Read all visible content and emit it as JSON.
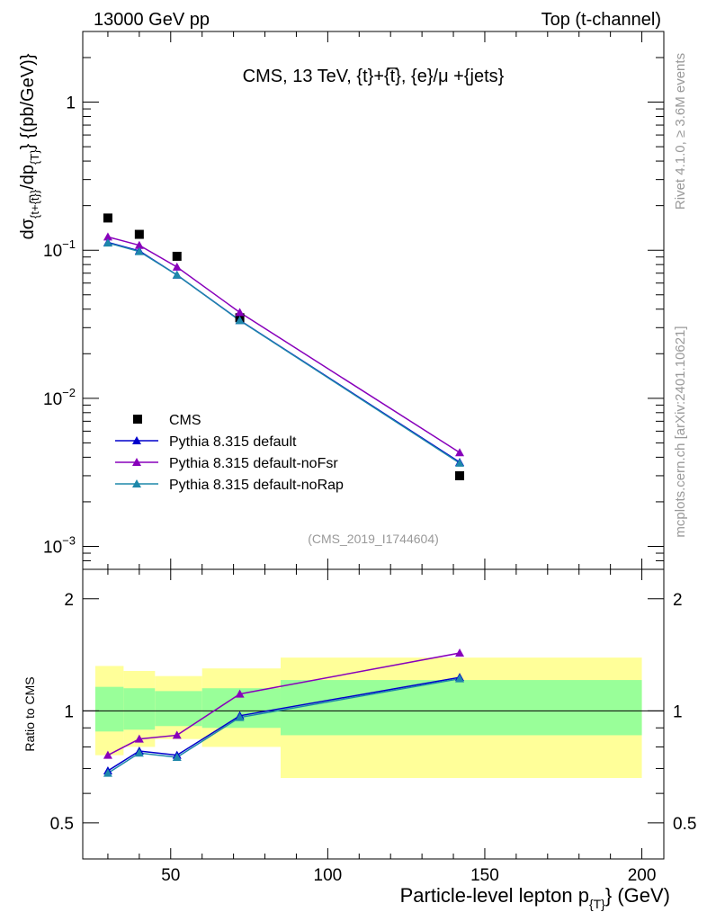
{
  "header": {
    "left": "13000 GeV pp",
    "right": "Top (t-channel)"
  },
  "side": {
    "rivet": "Rivet 4.1.0, ≥ 3.6M events",
    "mcplots": "mcplots.cern.ch [arXiv:2401.10621]"
  },
  "chart_data": {
    "type": "line",
    "title": "CMS, 13 TeV, {t}+{t̅}, {e}/μ +{jets}",
    "analysis_tag": "(CMS_2019_I1744604)",
    "xlabel": "Particle-level lepton p_{T} (GeV)",
    "xlabel_main": "Particle-level lepton p",
    "xlabel_sub": "{T}",
    "xlabel_unit": "} (GeV)",
    "ylabel": "dσ_{t+t̅}/dp_{T} {(pb/GeV)}",
    "ylabel_parts": {
      "pre": "dσ",
      "sub": "{t+{t̅}}",
      "mid": "/dp",
      "sub2": "{T}",
      "post": "}  {(pb/GeV)}"
    },
    "ratio_ylabel": "Ratio to CMS",
    "xlim": [
      22,
      207
    ],
    "ylim": [
      0.0007,
      3.0
    ],
    "ratio_ylim": [
      0.4,
      2.4
    ],
    "x_ticks": [
      50,
      100,
      150,
      200
    ],
    "x_tick_labels": [
      "50",
      "100",
      "150",
      "200"
    ],
    "y_ticks": [
      {
        "value": 1,
        "base": "1",
        "exp": ""
      },
      {
        "value": 0.1,
        "base": "10",
        "exp": "−1"
      },
      {
        "value": 0.01,
        "base": "10",
        "exp": "−2"
      },
      {
        "value": 0.001,
        "base": "10",
        "exp": "−3"
      }
    ],
    "ratio_ticks": [
      {
        "value": 0.5,
        "label": "0.5"
      },
      {
        "value": 1,
        "label": "1"
      },
      {
        "value": 2,
        "label": "2"
      }
    ],
    "bins": [
      {
        "lo": 26,
        "hi": 35,
        "center": 30,
        "cms": 0.165
      },
      {
        "lo": 35,
        "hi": 45,
        "center": 40,
        "cms": 0.128
      },
      {
        "lo": 45,
        "hi": 60,
        "center": 52,
        "cms": 0.091
      },
      {
        "lo": 60,
        "hi": 85,
        "center": 72,
        "cms": 0.035
      },
      {
        "lo": 85,
        "hi": 200,
        "center": 142,
        "cms": 0.003
      }
    ],
    "uncertainty_bands": {
      "inner": [
        [
          0.88,
          1.16
        ],
        [
          0.89,
          1.15
        ],
        [
          0.91,
          1.13
        ],
        [
          0.9,
          1.15
        ],
        [
          0.86,
          1.21
        ]
      ],
      "outer": [
        [
          0.76,
          1.32
        ],
        [
          0.8,
          1.28
        ],
        [
          0.84,
          1.24
        ],
        [
          0.8,
          1.3
        ],
        [
          0.66,
          1.39
        ]
      ]
    },
    "series": [
      {
        "name": "CMS",
        "color": "#000000",
        "marker": "square",
        "x": [
          30,
          40,
          52,
          72,
          142
        ],
        "values": [
          0.165,
          0.128,
          0.091,
          0.035,
          0.003
        ]
      },
      {
        "name": "Pythia 8.315 default",
        "color": "#0000cc",
        "marker": "triangle",
        "x": [
          30,
          40,
          52,
          72,
          142
        ],
        "values": [
          0.113,
          0.099,
          0.068,
          0.0336,
          0.0037
        ],
        "ratio": [
          0.69,
          0.78,
          0.76,
          0.97,
          1.23
        ]
      },
      {
        "name": "Pythia 8.315 default-noFsr",
        "color": "#8800bb",
        "marker": "triangle",
        "x": [
          30,
          40,
          52,
          72,
          142
        ],
        "values": [
          0.123,
          0.108,
          0.077,
          0.038,
          0.0043
        ],
        "ratio": [
          0.76,
          0.84,
          0.86,
          1.11,
          1.43
        ]
      },
      {
        "name": "Pythia 8.315 default-noRap",
        "color": "#1e88aa",
        "marker": "triangle",
        "x": [
          30,
          40,
          52,
          72,
          142
        ],
        "values": [
          0.112,
          0.098,
          0.068,
          0.0335,
          0.00365
        ],
        "ratio": [
          0.68,
          0.77,
          0.75,
          0.96,
          1.22
        ]
      }
    ],
    "legend_position": "lower-left",
    "colors": {
      "band_inner": "#99ff99",
      "band_outer": "#ffff99"
    }
  }
}
